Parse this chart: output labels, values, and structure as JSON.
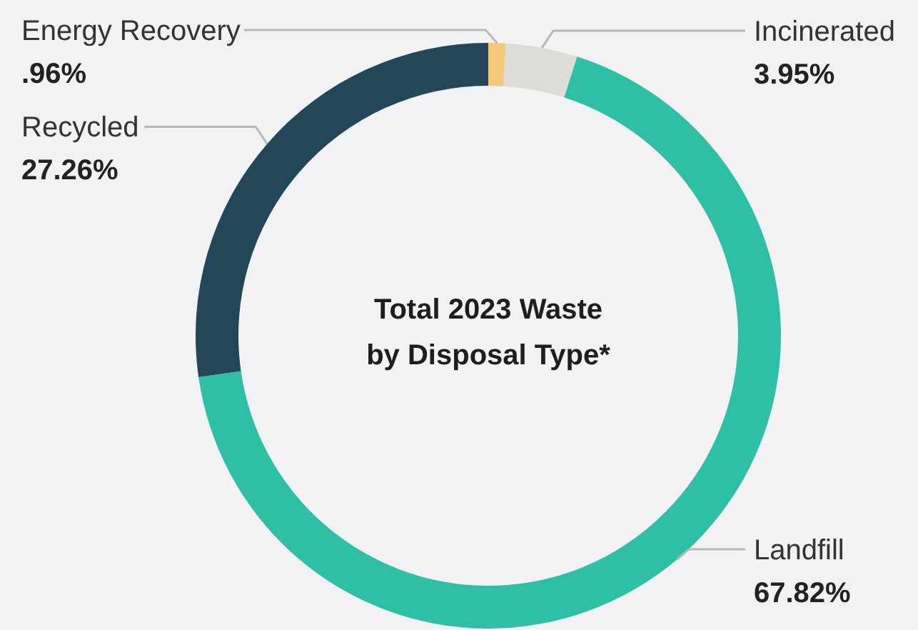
{
  "chart_data": {
    "type": "donut",
    "title": "Total 2023 Waste\nby Disposal Type*",
    "categories": [
      "Energy Recovery",
      "Incinerated",
      "Landfill",
      "Recycled"
    ],
    "values": [
      0.96,
      3.95,
      67.82,
      27.26
    ],
    "value_labels": [
      ".96%",
      "3.95%",
      "67.82%",
      "27.26%"
    ],
    "colors": [
      "#f5c97a",
      "#dcdcd8",
      "#2ebfa5",
      "#234759"
    ]
  }
}
